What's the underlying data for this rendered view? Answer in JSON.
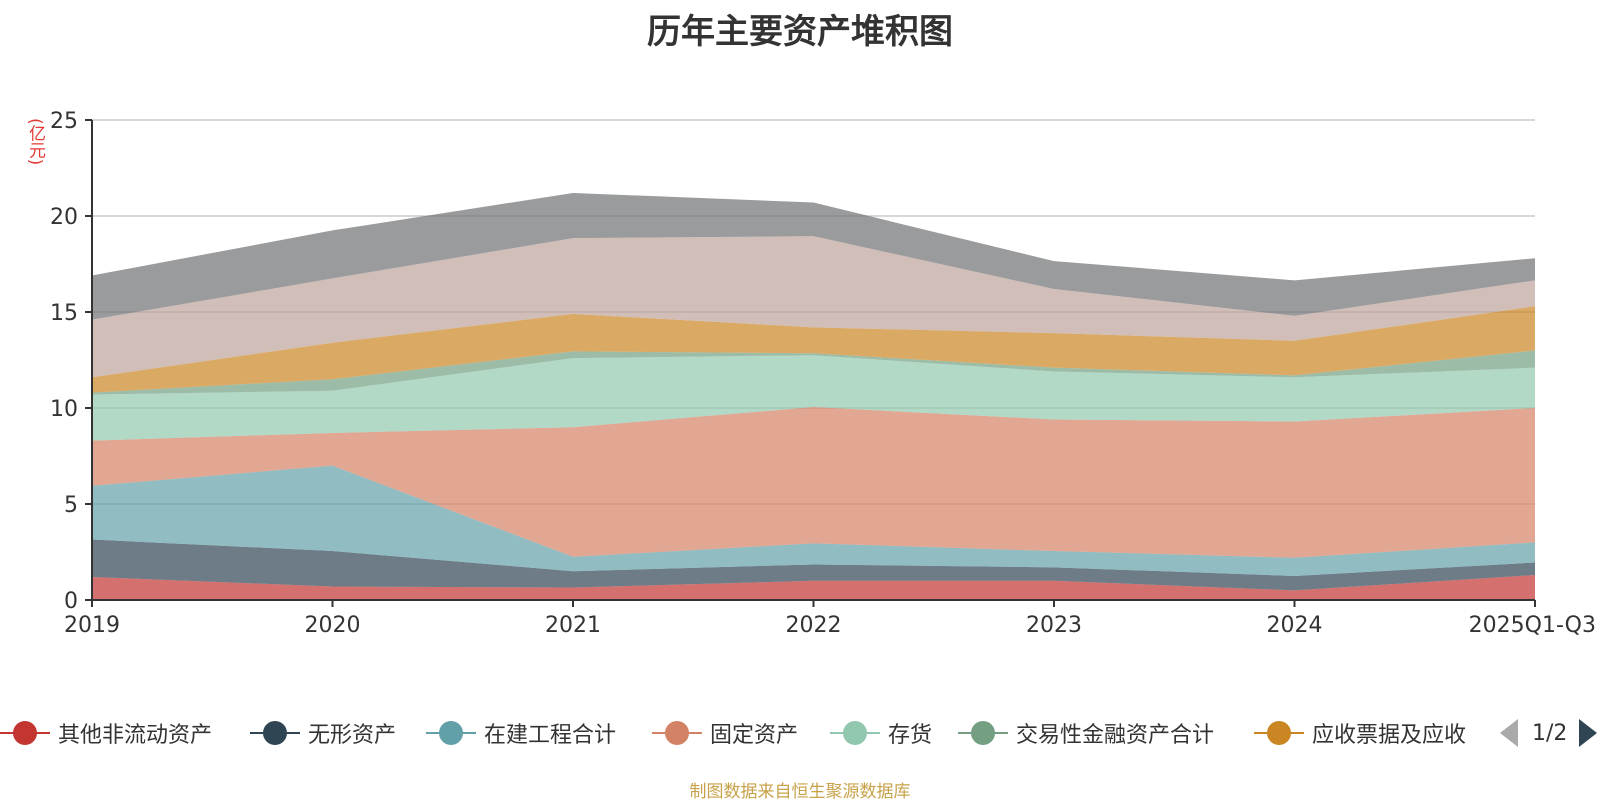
{
  "chart_data": {
    "type": "area",
    "stacked": true,
    "title": "历年主要资产堆积图",
    "ylabel": "亿元",
    "ylabel_display": "(亿元)",
    "xlabel": "",
    "ylim": [
      0,
      25
    ],
    "yticks": [
      0,
      5,
      10,
      15,
      20,
      25
    ],
    "categories": [
      "2019",
      "2020",
      "2021",
      "2022",
      "2023",
      "2024",
      "2025Q1-Q3"
    ],
    "grid": true,
    "legend_position": "bottom",
    "series": [
      {
        "name": "其他非流动资产",
        "color": "#c23531",
        "values": [
          1.2,
          0.7,
          0.65,
          1.0,
          1.0,
          0.5,
          1.3
        ],
        "in_legend": true
      },
      {
        "name": "无形资产",
        "color": "#2f4554",
        "values": [
          1.95,
          1.85,
          0.85,
          0.85,
          0.7,
          0.75,
          0.65
        ],
        "in_legend": true
      },
      {
        "name": "在建工程合计",
        "color": "#61a0a8",
        "values": [
          2.8,
          4.45,
          0.75,
          1.1,
          0.85,
          0.95,
          1.05
        ],
        "in_legend": true
      },
      {
        "name": "固定资产",
        "color": "#d48265",
        "values": [
          2.35,
          1.7,
          6.75,
          7.1,
          6.85,
          7.1,
          7.0
        ],
        "in_legend": true
      },
      {
        "name": "存货",
        "color": "#91c7ae",
        "values": [
          2.4,
          2.2,
          3.6,
          2.7,
          2.5,
          2.3,
          2.1
        ],
        "in_legend": true
      },
      {
        "name": "交易性金融资产合计",
        "color": "#749f83",
        "values": [
          0.1,
          0.6,
          0.35,
          0.1,
          0.2,
          0.1,
          0.9
        ],
        "in_legend": true
      },
      {
        "name": "应收票据及应收",
        "color": "#ca8622",
        "values": [
          0.8,
          1.9,
          1.95,
          1.35,
          1.8,
          1.8,
          2.3
        ],
        "in_legend": true
      },
      {
        "name": "",
        "color": "#bda29a",
        "values": [
          3.0,
          3.35,
          3.95,
          4.75,
          2.3,
          1.3,
          1.35
        ],
        "in_legend": false
      },
      {
        "name": "",
        "color": "#6e7074",
        "values": [
          2.3,
          2.5,
          2.35,
          1.75,
          1.45,
          1.85,
          1.15
        ],
        "in_legend": false
      }
    ]
  },
  "legend": {
    "page": "1/2"
  },
  "footer": {
    "source": "制图数据来自恒生聚源数据库"
  }
}
